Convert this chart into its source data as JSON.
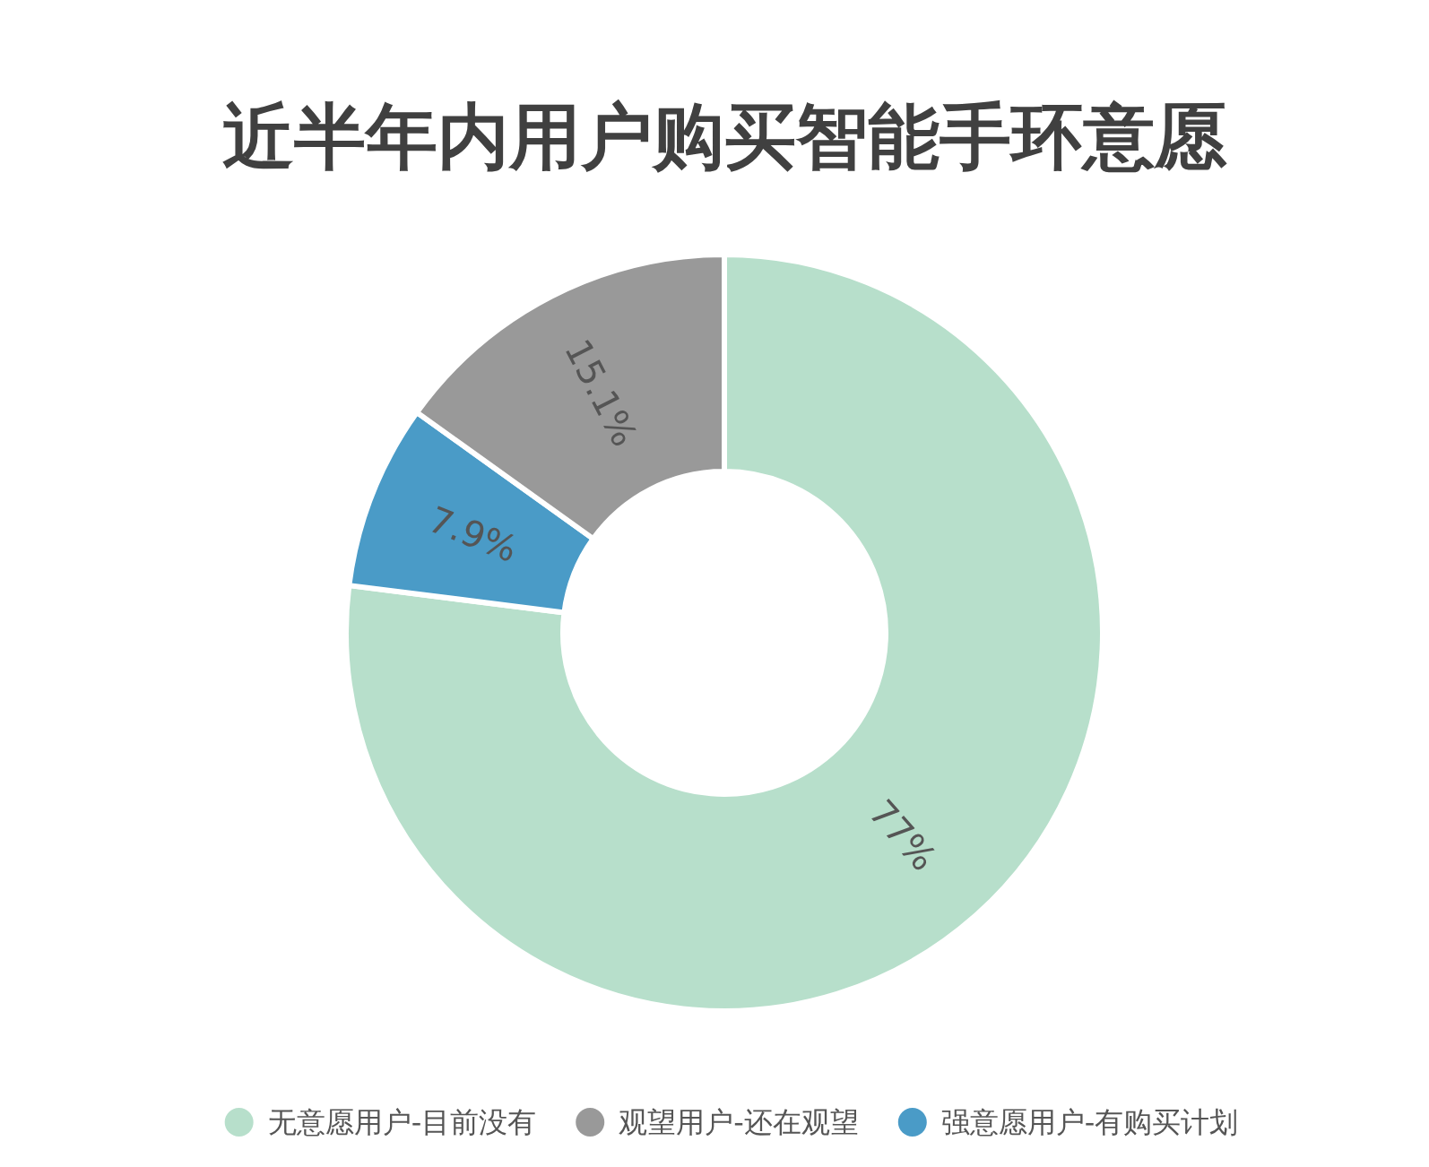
{
  "chart_data": {
    "type": "donut",
    "title": "近半年内用户购买智能手环意愿",
    "categories": [
      "无意愿用户-目前没有",
      "观望用户-还在观望",
      "强意愿用户-有购买计划"
    ],
    "values": [
      77,
      15.1,
      7.9
    ],
    "colors": [
      "#b7dfcb",
      "#999999",
      "#4a9bc7"
    ],
    "value_labels": [
      "77%",
      "15.1%",
      "7.9%"
    ],
    "legend": "bottom"
  }
}
